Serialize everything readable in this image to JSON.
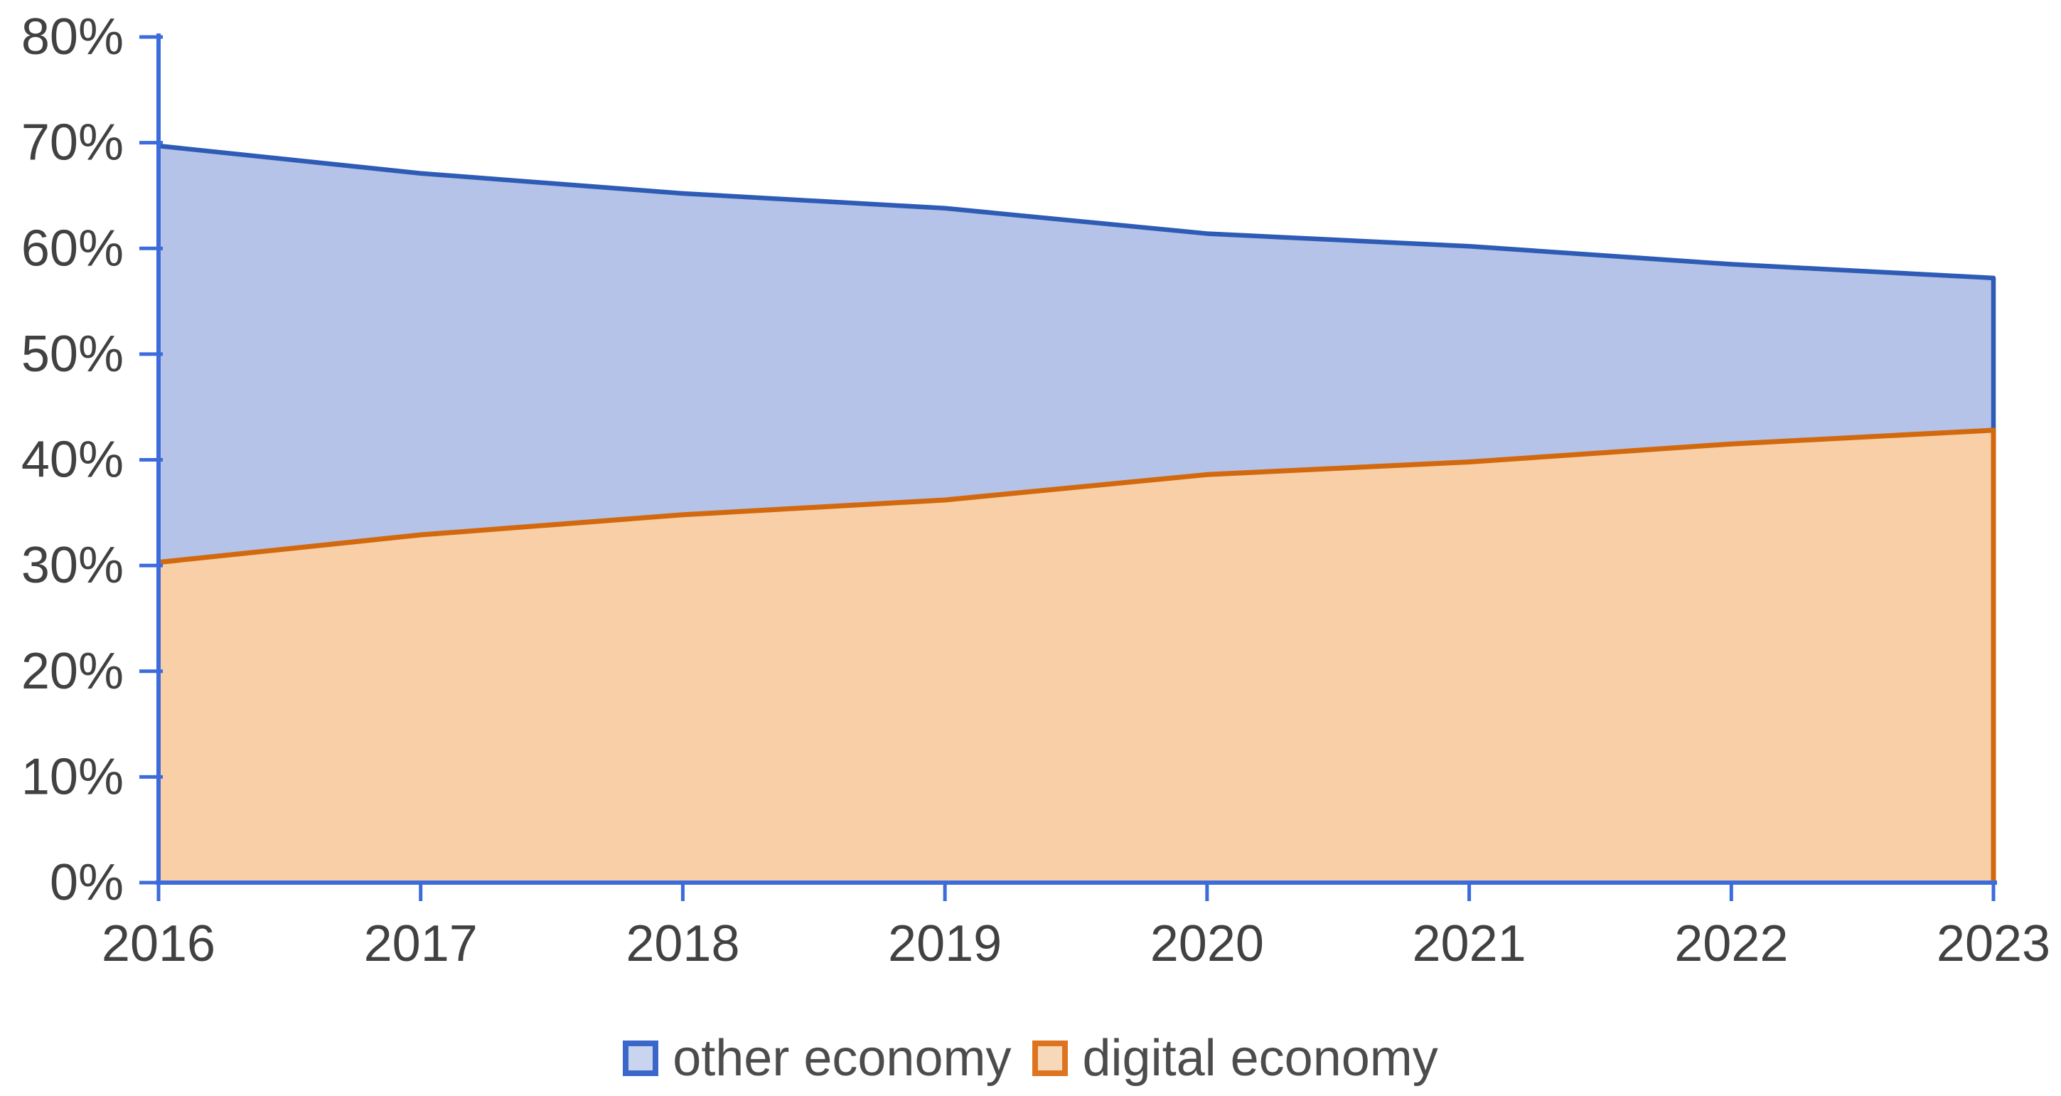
{
  "chart_data": {
    "type": "area",
    "variant": "overlapping-areas-from-zero (digital economy drawn over other economy)",
    "title": "",
    "categories": [
      "2016",
      "2017",
      "2018",
      "2019",
      "2020",
      "2021",
      "2022",
      "2023"
    ],
    "series": [
      {
        "name": "other economy",
        "values": [
          69.7,
          67.1,
          65.2,
          63.8,
          61.4,
          60.2,
          58.5,
          57.2
        ],
        "fill": "#b4c3e7",
        "stroke": "#2e5bb5"
      },
      {
        "name": "digital economy",
        "values": [
          30.3,
          32.9,
          34.8,
          36.2,
          38.6,
          39.8,
          41.5,
          42.8
        ],
        "fill": "#f8cfa6",
        "stroke": "#d2690f"
      }
    ],
    "y_axis": {
      "min": 0,
      "max": 80,
      "tick_step": 10,
      "tick_labels": [
        "0%",
        "10%",
        "20%",
        "30%",
        "40%",
        "50%",
        "60%",
        "70%",
        "80%"
      ],
      "label_color": "#414141"
    },
    "x_axis": {
      "tick_labels": [
        "2016",
        "2017",
        "2018",
        "2019",
        "2020",
        "2021",
        "2022",
        "2023"
      ],
      "label_color": "#414141"
    },
    "axis_color": "#3c6cdb",
    "grid": false,
    "legend": {
      "position": "bottom-center",
      "text_color": "#4c4c4c",
      "items": [
        {
          "label": "other economy",
          "swatch_fill": "#c9d4ee",
          "swatch_border": "#3a67c9"
        },
        {
          "label": "digital economy",
          "swatch_fill": "#f7d9ba",
          "swatch_border": "#de7420"
        }
      ]
    }
  }
}
